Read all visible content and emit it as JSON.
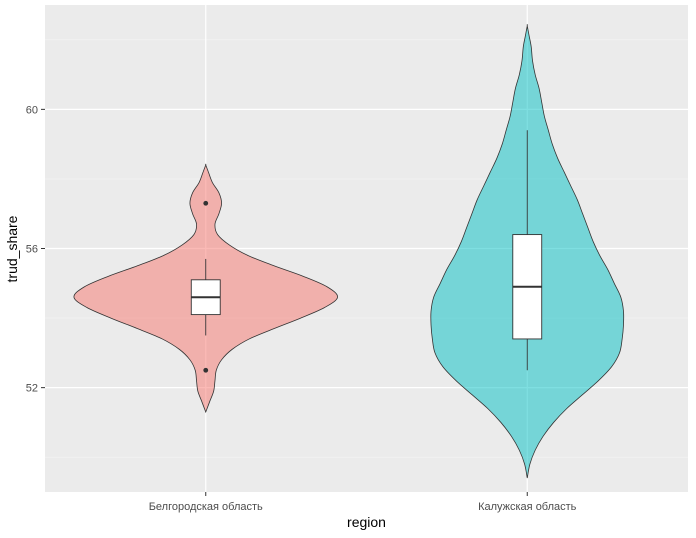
{
  "chart_data": {
    "type": "violin",
    "xlabel": "region",
    "ylabel": "trud_share",
    "categories": [
      "Белгородская область",
      "Калужская область"
    ],
    "y_ticks": [
      52,
      56,
      60
    ],
    "ylim": [
      49.0,
      63.0
    ],
    "grid": true,
    "legend": "none",
    "colors": {
      "panel_bg": "#ebebeb",
      "grid_major": "#ffffff",
      "grid_minor": "#f5f5f5",
      "outline": "#333333"
    },
    "series": [
      {
        "category": "Белгородская область",
        "fill": "#f8766d",
        "fill_opacity": 0.5,
        "violin_y_range": [
          51.3,
          58.4
        ],
        "density_profile": [
          [
            51.3,
            0.0
          ],
          [
            51.6,
            0.03
          ],
          [
            51.9,
            0.06
          ],
          [
            52.2,
            0.07
          ],
          [
            52.5,
            0.08
          ],
          [
            52.8,
            0.12
          ],
          [
            53.1,
            0.2
          ],
          [
            53.4,
            0.33
          ],
          [
            53.7,
            0.52
          ],
          [
            54.0,
            0.72
          ],
          [
            54.3,
            0.9
          ],
          [
            54.6,
            1.0
          ],
          [
            54.9,
            0.92
          ],
          [
            55.2,
            0.74
          ],
          [
            55.5,
            0.52
          ],
          [
            55.8,
            0.32
          ],
          [
            56.1,
            0.18
          ],
          [
            56.4,
            0.09
          ],
          [
            56.7,
            0.07
          ],
          [
            57.0,
            0.1
          ],
          [
            57.3,
            0.12
          ],
          [
            57.6,
            0.1
          ],
          [
            57.9,
            0.05
          ],
          [
            58.2,
            0.02
          ],
          [
            58.4,
            0.0
          ]
        ],
        "box": {
          "whisker_low": 53.5,
          "q1": 54.1,
          "median": 54.6,
          "q3": 55.1,
          "whisker_high": 55.7
        },
        "outliers": [
          52.5,
          57.3
        ]
      },
      {
        "category": "Калужская область",
        "fill": "#00bfc4",
        "fill_opacity": 0.5,
        "violin_y_range": [
          49.4,
          62.4
        ],
        "density_profile": [
          [
            49.4,
            0.0
          ],
          [
            49.8,
            0.02
          ],
          [
            50.2,
            0.06
          ],
          [
            50.6,
            0.12
          ],
          [
            51.0,
            0.2
          ],
          [
            51.4,
            0.3
          ],
          [
            51.8,
            0.42
          ],
          [
            52.2,
            0.54
          ],
          [
            52.6,
            0.64
          ],
          [
            53.0,
            0.7
          ],
          [
            53.4,
            0.72
          ],
          [
            53.8,
            0.73
          ],
          [
            54.2,
            0.73
          ],
          [
            54.6,
            0.71
          ],
          [
            55.0,
            0.66
          ],
          [
            55.4,
            0.61
          ],
          [
            55.8,
            0.55
          ],
          [
            56.2,
            0.5
          ],
          [
            56.6,
            0.46
          ],
          [
            57.0,
            0.42
          ],
          [
            57.4,
            0.38
          ],
          [
            57.8,
            0.33
          ],
          [
            58.2,
            0.28
          ],
          [
            58.6,
            0.23
          ],
          [
            59.0,
            0.19
          ],
          [
            59.4,
            0.16
          ],
          [
            59.8,
            0.13
          ],
          [
            60.2,
            0.11
          ],
          [
            60.6,
            0.09
          ],
          [
            61.0,
            0.06
          ],
          [
            61.4,
            0.04
          ],
          [
            61.8,
            0.03
          ],
          [
            62.1,
            0.015
          ],
          [
            62.4,
            0.0
          ]
        ],
        "box": {
          "whisker_low": 52.5,
          "q1": 53.4,
          "median": 54.9,
          "q3": 56.4,
          "whisker_high": 59.4
        },
        "outliers": []
      }
    ]
  }
}
